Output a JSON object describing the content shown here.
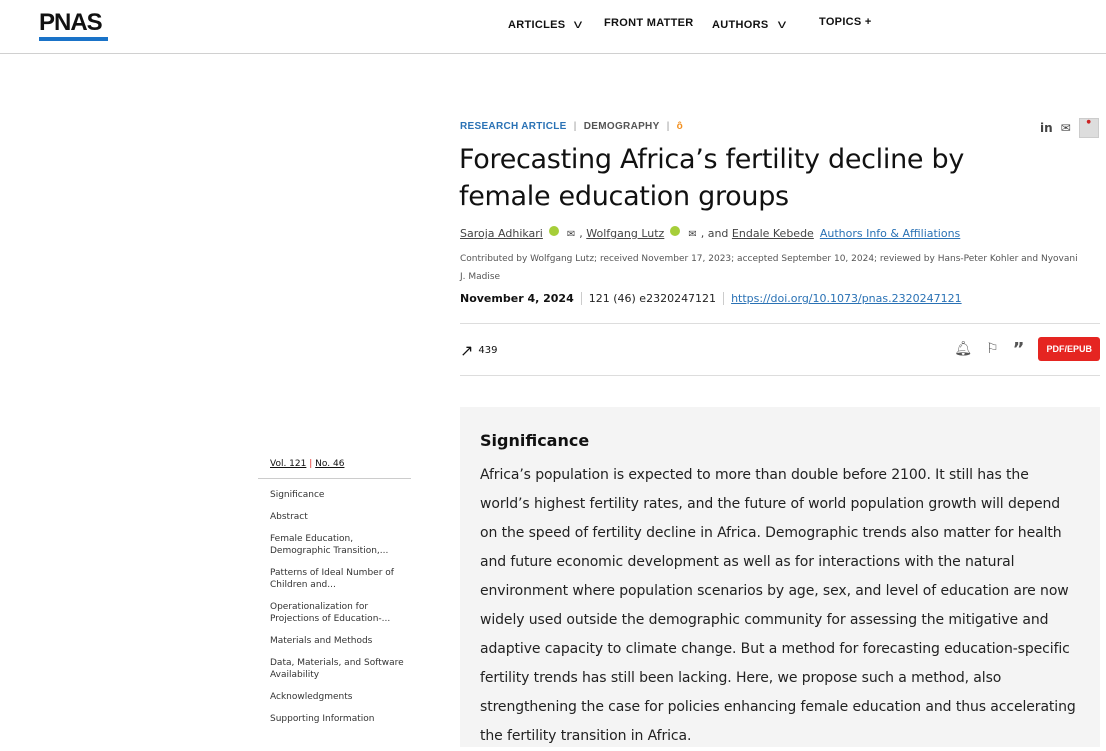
{
  "header": {
    "logo": "PNAS",
    "nav": [
      {
        "label": "ARTICLES",
        "has_dropdown": true
      },
      {
        "label": "FRONT MATTER",
        "has_dropdown": false
      },
      {
        "label": "AUTHORS",
        "has_dropdown": true
      },
      {
        "label": "TOPICS +",
        "has_dropdown": false
      }
    ]
  },
  "article": {
    "type": "RESEARCH ARTICLE",
    "category": "DEMOGRAPHY",
    "open_access_icon": "open-access-icon",
    "share": {
      "linkedin": "in"
    },
    "title": "Forecasting Africa’s fertility decline by female education groups",
    "authors": [
      "Saroja Adhikari",
      "Wolfgang Lutz",
      "Endale Kebede"
    ],
    "and": ", and",
    "comma": ",",
    "affiliations_link": "Authors Info & Affiliations",
    "contributed": "Contributed by Wolfgang Lutz; received November 17, 2023; accepted September 10, 2024; reviewed by Hans-Peter Kohler and Nyovani J. Madise",
    "date": "November 4, 2024",
    "volume_info": "121 (46) e2320247121",
    "doi": "https://doi.org/10.1073/pnas.2320247121",
    "metric_count": "439",
    "pdf_button": "PDF/EPUB"
  },
  "sidebar": {
    "vol": "Vol. 121",
    "sep": "|",
    "no": "No. 46",
    "toc": [
      "Significance",
      "Abstract",
      "Female Education, Demographic Transition,...",
      "Patterns of Ideal Number of Children and...",
      "Operationalization for Projections of Education-...",
      "Materials and Methods",
      "Data, Materials, and Software Availability",
      "Acknowledgments",
      "Supporting Information"
    ]
  },
  "significance": {
    "heading": "Significance",
    "text": "Africa’s population is expected to more than double before 2100. It still has the world’s highest fertility rates, and the future of world population growth will depend on the speed of fertility decline in Africa. Demographic trends also matter for health and future economic development as well as for interactions with the natural environment where population scenarios by age, sex, and level of education are now widely used outside the demographic community for assessing the mitigative and adaptive capacity to climate change. But a method for forecasting education-specific fertility trends has still been lacking. Here, we propose such a method, also strengthening the case for policies enhancing female education and thus accelerating the fertility transition in Africa."
  },
  "colors": {
    "accent": "#2a72b5",
    "pdf": "#e52521",
    "logo_bar": "#1a73c8",
    "box": "#f4f4f4"
  }
}
